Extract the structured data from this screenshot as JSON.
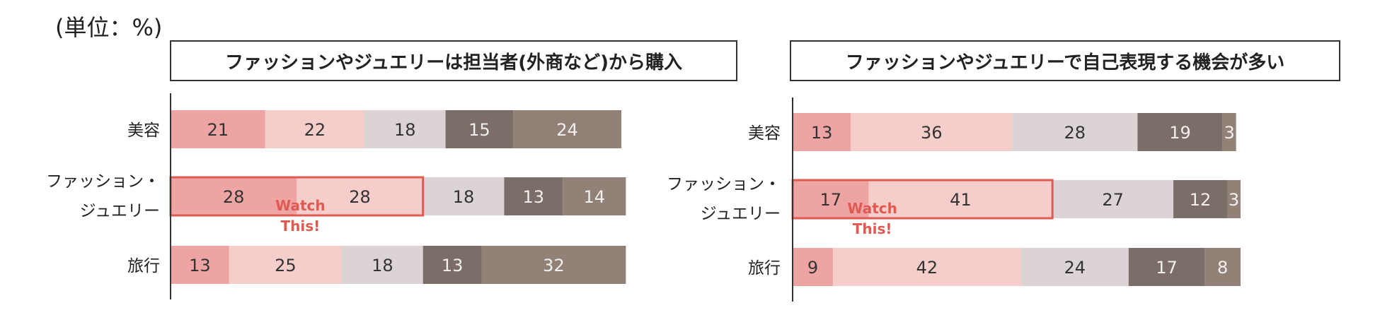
{
  "unit_label": "(単位：%)",
  "chart_data": [
    {
      "type": "bar",
      "orientation": "horizontal-stacked",
      "title": "ファッションやジュエリーは担当者(外商など)から購入",
      "categories": [
        [
          "美容"
        ],
        [
          "ファッション・",
          "ジュエリー"
        ],
        [
          "旅行"
        ]
      ],
      "series": [
        {
          "values": [
            21,
            28,
            13
          ]
        },
        {
          "values": [
            22,
            28,
            25
          ]
        },
        {
          "values": [
            18,
            18,
            18
          ]
        },
        {
          "values": [
            15,
            13,
            13
          ]
        },
        {
          "values": [
            24,
            14,
            32
          ]
        }
      ],
      "annotation": {
        "category_index": 1,
        "text": [
          "Watch",
          "This!"
        ]
      }
    },
    {
      "type": "bar",
      "orientation": "horizontal-stacked",
      "title": "ファッションやジュエリーで自己表現する機会が多い",
      "categories": [
        [
          "美容"
        ],
        [
          "ファッション・",
          "ジュエリー"
        ],
        [
          "旅行"
        ]
      ],
      "series": [
        {
          "values": [
            13,
            17,
            9
          ]
        },
        {
          "values": [
            36,
            41,
            42
          ]
        },
        {
          "values": [
            28,
            27,
            24
          ]
        },
        {
          "values": [
            19,
            12,
            17
          ]
        },
        {
          "values": [
            3,
            3,
            8
          ]
        }
      ],
      "annotation": {
        "category_index": 1,
        "text": [
          "Watch",
          "This!"
        ]
      }
    }
  ],
  "colors": {
    "series": [
      "#eda4a3",
      "#f5cdca",
      "#dcd4d4",
      "#7b6d67",
      "#918177"
    ],
    "label_dark": "#333333",
    "label_light": "#f2efee",
    "highlight": "#e05a52",
    "axis": "#333333"
  }
}
